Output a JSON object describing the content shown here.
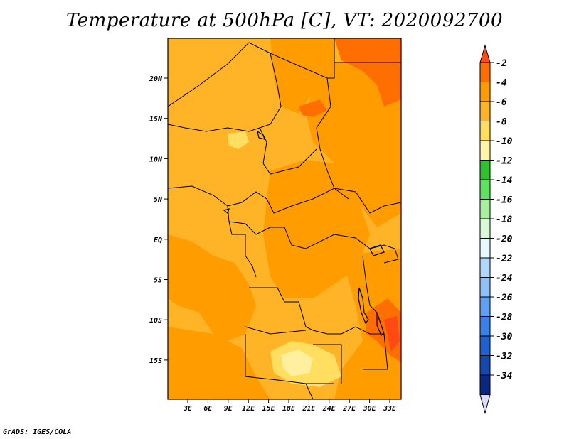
{
  "title": "Temperature at 500hPa [C], VT: 2020092700",
  "credit": "GrADS: IGES/COLA",
  "map": {
    "lat_ticks": [
      "20N",
      "15N",
      "10N",
      "5N",
      "EQ",
      "5S",
      "10S",
      "15S"
    ],
    "lon_ticks": [
      "3E",
      "6E",
      "9E",
      "12E",
      "15E",
      "18E",
      "21E",
      "24E",
      "27E",
      "30E",
      "33E"
    ]
  },
  "colorbar": {
    "labels": [
      "-2",
      "-4",
      "-6",
      "-8",
      "-10",
      "-12",
      "-14",
      "-16",
      "-18",
      "-20",
      "-22",
      "-24",
      "-26",
      "-28",
      "-30",
      "-32",
      "-34"
    ],
    "colors": [
      "#ff4a14",
      "#ff6e00",
      "#ff9c00",
      "#ffb428",
      "#ffde60",
      "#fff5a8",
      "#30c030",
      "#60e060",
      "#a8f0a0",
      "#d8f8d8",
      "#e8f8ff",
      "#b0d8ff",
      "#90c0f8",
      "#60a0f0",
      "#3a80e8",
      "#2060d0",
      "#1448b0",
      "#0a2880",
      "#dcdcff"
    ]
  }
}
